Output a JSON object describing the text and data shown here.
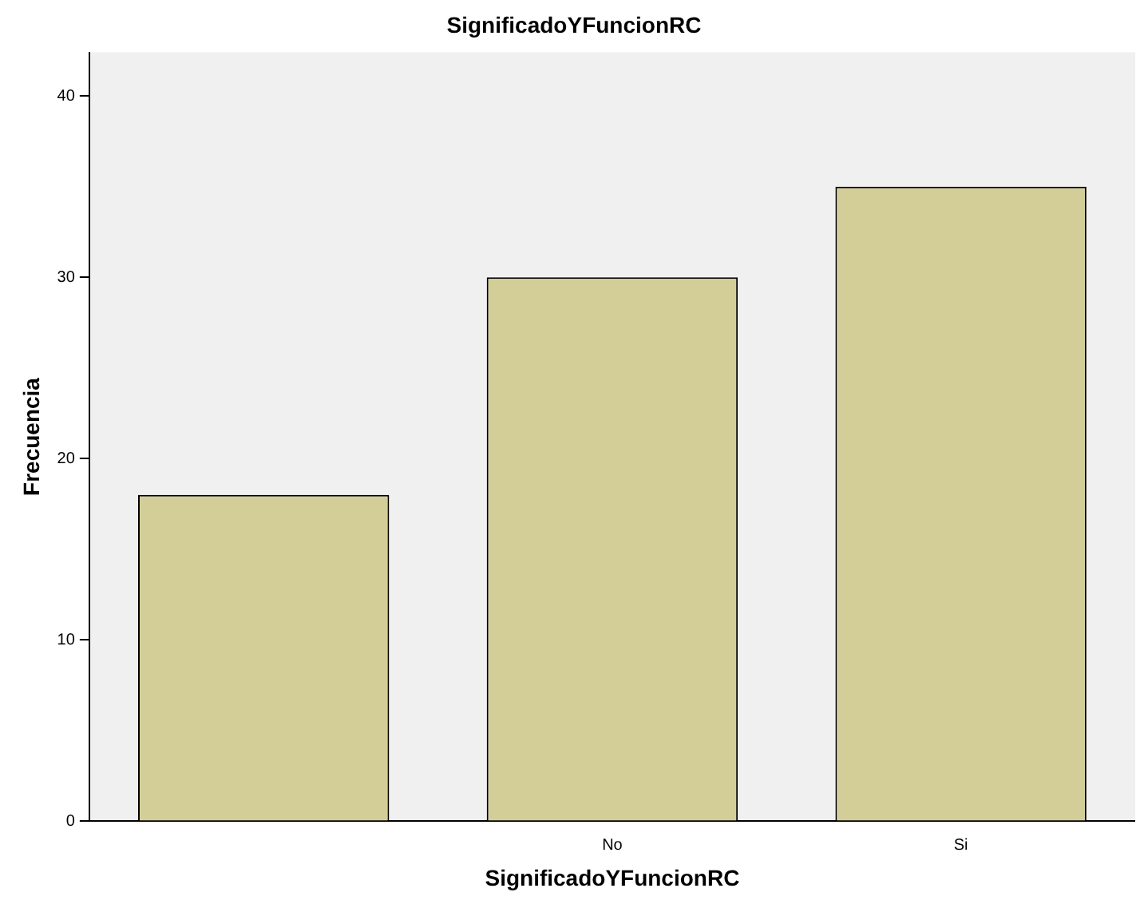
{
  "chart_data": {
    "type": "bar",
    "title": "SignificadoYFuncionRC",
    "xlabel": "SignificadoYFuncionRC",
    "ylabel": "Frecuencia",
    "categories": [
      null,
      "No",
      "Si"
    ],
    "values": [
      18,
      30,
      35
    ],
    "color": "#d3ce97",
    "ylim": [
      0,
      42.4
    ],
    "yticks": [
      0,
      10,
      20,
      30,
      40
    ],
    "grid": false
  }
}
